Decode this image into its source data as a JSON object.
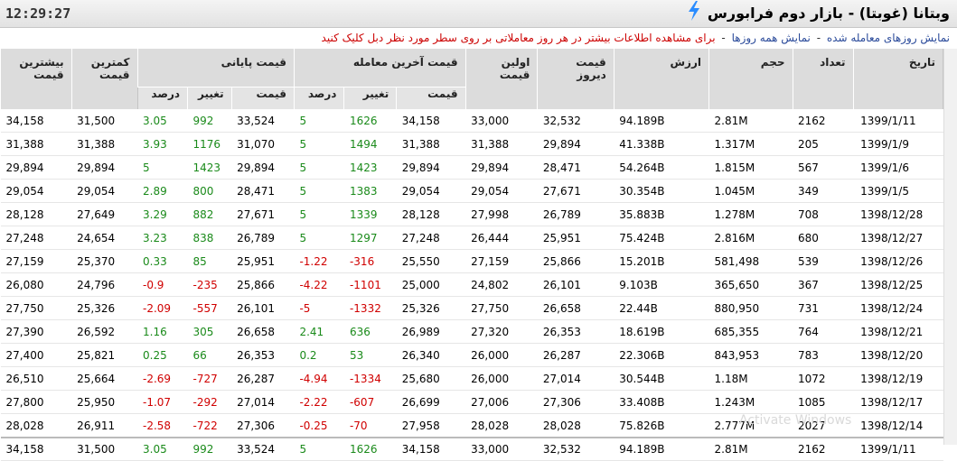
{
  "header": {
    "clock": "12:29:27",
    "title": "وبتانا (غوبتا) - بازار دوم فرابورس",
    "bolt_color": "#2a8cff"
  },
  "info": {
    "show_traded": "نمایش روزهای معامله شده",
    "show_all": "نمایش همه روزها",
    "separator": "-",
    "note": "برای مشاهده اطلاعات بیشتر در هر روز معاملاتی بر روی سطر مورد نظر دبل کلیک کنید"
  },
  "columns": {
    "date": "تاریخ",
    "count": "تعداد",
    "volume": "حجم",
    "value": "ارزش",
    "prev_price": "قیمت دیروز",
    "first_price": "اولین قیمت",
    "last_trade": "قیمت آخرین معامله",
    "closing": "قیمت پایانی",
    "sub_price": "قیمت",
    "sub_change": "تغییر",
    "sub_percent": "درصد",
    "min_price": "کمترین قیمت",
    "max_price": "بیشترین قیمت"
  },
  "rows": [
    {
      "date": "1399/1/11",
      "count": "2162",
      "volume": "2.81M",
      "value": "94.189B",
      "prev": "32,532",
      "first": "33,000",
      "last_price": "34,158",
      "last_change": "1626",
      "last_pct": "5",
      "close_price": "33,524",
      "close_change": "992",
      "close_pct": "3.05",
      "min": "31,500",
      "max": "34,158",
      "last_sign": "pos",
      "close_sign": "pos"
    },
    {
      "date": "1399/1/9",
      "count": "205",
      "volume": "1.317M",
      "value": "41.338B",
      "prev": "29,894",
      "first": "31,388",
      "last_price": "31,388",
      "last_change": "1494",
      "last_pct": "5",
      "close_price": "31,070",
      "close_change": "1176",
      "close_pct": "3.93",
      "min": "31,388",
      "max": "31,388",
      "last_sign": "pos",
      "close_sign": "pos"
    },
    {
      "date": "1399/1/6",
      "count": "567",
      "volume": "1.815M",
      "value": "54.264B",
      "prev": "28,471",
      "first": "29,894",
      "last_price": "29,894",
      "last_change": "1423",
      "last_pct": "5",
      "close_price": "29,894",
      "close_change": "1423",
      "close_pct": "5",
      "min": "29,894",
      "max": "29,894",
      "last_sign": "pos",
      "close_sign": "pos"
    },
    {
      "date": "1399/1/5",
      "count": "349",
      "volume": "1.045M",
      "value": "30.354B",
      "prev": "27,671",
      "first": "29,054",
      "last_price": "29,054",
      "last_change": "1383",
      "last_pct": "5",
      "close_price": "28,471",
      "close_change": "800",
      "close_pct": "2.89",
      "min": "29,054",
      "max": "29,054",
      "last_sign": "pos",
      "close_sign": "pos"
    },
    {
      "date": "1398/12/28",
      "count": "708",
      "volume": "1.278M",
      "value": "35.883B",
      "prev": "26,789",
      "first": "27,998",
      "last_price": "28,128",
      "last_change": "1339",
      "last_pct": "5",
      "close_price": "27,671",
      "close_change": "882",
      "close_pct": "3.29",
      "min": "27,649",
      "max": "28,128",
      "last_sign": "pos",
      "close_sign": "pos"
    },
    {
      "date": "1398/12/27",
      "count": "680",
      "volume": "2.816M",
      "value": "75.424B",
      "prev": "25,951",
      "first": "26,444",
      "last_price": "27,248",
      "last_change": "1297",
      "last_pct": "5",
      "close_price": "26,789",
      "close_change": "838",
      "close_pct": "3.23",
      "min": "24,654",
      "max": "27,248",
      "last_sign": "pos",
      "close_sign": "pos"
    },
    {
      "date": "1398/12/26",
      "count": "539",
      "volume": "581,498",
      "value": "15.201B",
      "prev": "25,866",
      "first": "27,159",
      "last_price": "25,550",
      "last_change": "-316",
      "last_pct": "-1.22",
      "close_price": "25,951",
      "close_change": "85",
      "close_pct": "0.33",
      "min": "25,370",
      "max": "27,159",
      "last_sign": "neg",
      "close_sign": "pos"
    },
    {
      "date": "1398/12/25",
      "count": "367",
      "volume": "365,650",
      "value": "9.103B",
      "prev": "26,101",
      "first": "24,802",
      "last_price": "25,000",
      "last_change": "-1101",
      "last_pct": "-4.22",
      "close_price": "25,866",
      "close_change": "-235",
      "close_pct": "-0.9",
      "min": "24,796",
      "max": "26,080",
      "last_sign": "neg",
      "close_sign": "neg"
    },
    {
      "date": "1398/12/24",
      "count": "731",
      "volume": "880,950",
      "value": "22.44B",
      "prev": "26,658",
      "first": "27,750",
      "last_price": "25,326",
      "last_change": "-1332",
      "last_pct": "-5",
      "close_price": "26,101",
      "close_change": "-557",
      "close_pct": "-2.09",
      "min": "25,326",
      "max": "27,750",
      "last_sign": "neg",
      "close_sign": "neg"
    },
    {
      "date": "1398/12/21",
      "count": "764",
      "volume": "685,355",
      "value": "18.619B",
      "prev": "26,353",
      "first": "27,320",
      "last_price": "26,989",
      "last_change": "636",
      "last_pct": "2.41",
      "close_price": "26,658",
      "close_change": "305",
      "close_pct": "1.16",
      "min": "26,592",
      "max": "27,390",
      "last_sign": "pos",
      "close_sign": "pos"
    },
    {
      "date": "1398/12/20",
      "count": "783",
      "volume": "843,953",
      "value": "22.306B",
      "prev": "26,287",
      "first": "26,000",
      "last_price": "26,340",
      "last_change": "53",
      "last_pct": "0.2",
      "close_price": "26,353",
      "close_change": "66",
      "close_pct": "0.25",
      "min": "25,821",
      "max": "27,400",
      "last_sign": "pos",
      "close_sign": "pos"
    },
    {
      "date": "1398/12/19",
      "count": "1072",
      "volume": "1.18M",
      "value": "30.544B",
      "prev": "27,014",
      "first": "26,000",
      "last_price": "25,680",
      "last_change": "-1334",
      "last_pct": "-4.94",
      "close_price": "26,287",
      "close_change": "-727",
      "close_pct": "-2.69",
      "min": "25,664",
      "max": "26,510",
      "last_sign": "neg",
      "close_sign": "neg"
    },
    {
      "date": "1398/12/17",
      "count": "1085",
      "volume": "1.243M",
      "value": "33.408B",
      "prev": "27,306",
      "first": "27,006",
      "last_price": "26,699",
      "last_change": "-607",
      "last_pct": "-2.22",
      "close_price": "27,014",
      "close_change": "-292",
      "close_pct": "-1.07",
      "min": "25,950",
      "max": "27,800",
      "last_sign": "neg",
      "close_sign": "neg"
    },
    {
      "date": "1398/12/14",
      "count": "2027",
      "volume": "2.777M",
      "value": "75.826B",
      "prev": "28,028",
      "first": "28,028",
      "last_price": "27,958",
      "last_change": "-70",
      "last_pct": "-0.25",
      "close_price": "27,306",
      "close_change": "-722",
      "close_pct": "-2.58",
      "min": "26,911",
      "max": "28,028",
      "last_sign": "neg",
      "close_sign": "neg"
    }
  ],
  "footer": {
    "date": "1399/1/11",
    "count": "2162",
    "volume": "2.81M",
    "value": "94.189B",
    "prev": "32,532",
    "first": "33,000",
    "last_price": "34,158",
    "last_change": "1626",
    "last_pct": "5",
    "close_price": "33,524",
    "close_change": "992",
    "close_pct": "3.05",
    "min": "31,500",
    "max": "34,158",
    "last_sign": "pos",
    "close_sign": "pos"
  },
  "watermark": "Activate Windows"
}
